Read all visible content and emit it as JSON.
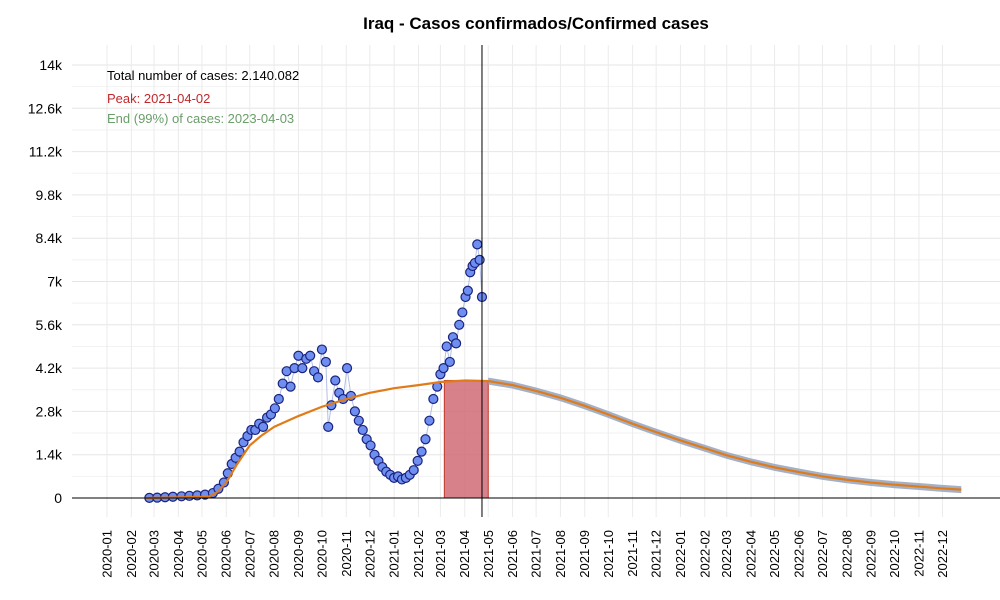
{
  "chart_data": {
    "type": "scatter",
    "title": "Iraq - Casos confirmados/Confirmed cases",
    "xlabel": "",
    "ylabel": "",
    "ylim": [
      0,
      14000
    ],
    "xlim": [
      "2020-01-01",
      "2022-12-31"
    ],
    "grid": true,
    "yticks": [
      0,
      1400,
      2800,
      4200,
      5600,
      7000,
      8400,
      9800,
      11200,
      12600,
      14000
    ],
    "ytick_labels": [
      "0",
      "1.4k",
      "2.8k",
      "4.2k",
      "5.6k",
      "7k",
      "8.4k",
      "9.8k",
      "11.2k",
      "12.6k",
      "14k"
    ],
    "xtick_labels": [
      "2020-01",
      "2020-02",
      "2020-03",
      "2020-04",
      "2020-05",
      "2020-06",
      "2020-07",
      "2020-08",
      "2020-09",
      "2020-10",
      "2020-11",
      "2020-12",
      "2021-01",
      "2021-02",
      "2021-03",
      "2021-04",
      "2021-05",
      "2021-06",
      "2021-07",
      "2021-08",
      "2021-09",
      "2021-10",
      "2021-11",
      "2021-12",
      "2022-01",
      "2022-02",
      "2022-03",
      "2022-04",
      "2022-05",
      "2022-06",
      "2022-07",
      "2022-08",
      "2022-09",
      "2022-10",
      "2022-11",
      "2022-12"
    ],
    "annotations": {
      "total": "Total number of cases: 2.140.082",
      "peak": "Peak: 2021-04-02",
      "end": "End (99%) of cases: 2023-04-03"
    },
    "colors": {
      "points_fill": "#6f8ff0",
      "points_stroke": "#1a237e",
      "fit_line": "#e07b1a",
      "forecast_band": "#9aa7c0",
      "peak_area": "#d06b77",
      "peak_area_stroke": "#c0392b",
      "peak_text": "#c0282b",
      "end_text": "#6a9e6a"
    },
    "current_date": "2021-04-23",
    "peak_area": {
      "from": "2021-03-06",
      "to": "2021-05-01",
      "value": 3800
    },
    "series": [
      {
        "type": "points",
        "x": [
          "2020-02-24",
          "2020-03-05",
          "2020-03-15",
          "2020-03-25",
          "2020-04-05",
          "2020-04-15",
          "2020-04-25",
          "2020-05-05",
          "2020-05-15",
          "2020-05-22",
          "2020-05-29",
          "2020-06-03",
          "2020-06-08",
          "2020-06-13",
          "2020-06-18",
          "2020-06-23",
          "2020-06-28",
          "2020-07-03",
          "2020-07-08",
          "2020-07-13",
          "2020-07-18",
          "2020-07-23",
          "2020-07-28",
          "2020-08-02",
          "2020-08-07",
          "2020-08-12",
          "2020-08-17",
          "2020-08-22",
          "2020-08-27",
          "2020-09-01",
          "2020-09-06",
          "2020-09-11",
          "2020-09-16",
          "2020-09-21",
          "2020-09-26",
          "2020-10-01",
          "2020-10-06",
          "2020-10-09",
          "2020-10-13",
          "2020-10-18",
          "2020-10-23",
          "2020-10-28",
          "2020-11-02",
          "2020-11-07",
          "2020-11-12",
          "2020-11-17",
          "2020-11-22",
          "2020-11-27",
          "2020-12-02",
          "2020-12-07",
          "2020-12-12",
          "2020-12-17",
          "2020-12-22",
          "2020-12-27",
          "2021-01-01",
          "2021-01-06",
          "2021-01-11",
          "2021-01-16",
          "2021-01-21",
          "2021-01-26",
          "2021-01-31",
          "2021-02-05",
          "2021-02-10",
          "2021-02-15",
          "2021-02-20",
          "2021-02-25",
          "2021-03-01",
          "2021-03-05",
          "2021-03-09",
          "2021-03-13",
          "2021-03-17",
          "2021-03-21",
          "2021-03-25",
          "2021-03-29",
          "2021-04-02",
          "2021-04-05",
          "2021-04-08",
          "2021-04-11",
          "2021-04-14",
          "2021-04-17",
          "2021-04-20",
          "2021-04-23"
        ],
        "y": [
          5,
          12,
          25,
          40,
          55,
          70,
          85,
          110,
          160,
          300,
          500,
          800,
          1100,
          1300,
          1500,
          1800,
          2000,
          2200,
          2200,
          2400,
          2300,
          2600,
          2700,
          2900,
          3200,
          3700,
          4100,
          3600,
          4200,
          4600,
          4200,
          4500,
          4600,
          4100,
          3900,
          4800,
          4400,
          2300,
          3000,
          3800,
          3400,
          3200,
          4200,
          3300,
          2800,
          2500,
          2200,
          1900,
          1700,
          1400,
          1200,
          1000,
          850,
          750,
          650,
          700,
          600,
          650,
          750,
          900,
          1200,
          1500,
          1900,
          2500,
          3200,
          3600,
          4000,
          4200,
          4900,
          4400,
          5200,
          5000,
          5600,
          6000,
          6500,
          6700,
          7300,
          7500,
          7600,
          8200,
          7700,
          6500
        ]
      },
      {
        "type": "fit",
        "x": [
          "2020-02-20",
          "2020-05-10",
          "2020-05-20",
          "2020-06-01",
          "2020-06-15",
          "2020-07-01",
          "2020-07-15",
          "2020-08-01",
          "2020-09-01",
          "2020-10-01",
          "2020-11-01",
          "2020-12-01",
          "2021-01-01",
          "2021-02-01",
          "2021-03-01",
          "2021-04-02",
          "2021-05-01",
          "2021-06-01",
          "2021-07-01",
          "2021-08-01",
          "2021-09-01",
          "2021-10-01",
          "2021-11-01",
          "2021-12-01",
          "2022-01-01",
          "2022-02-01",
          "2022-03-01",
          "2022-04-01",
          "2022-05-01",
          "2022-06-01",
          "2022-07-01",
          "2022-08-01",
          "2022-09-01",
          "2022-10-01",
          "2022-11-01",
          "2022-12-01",
          "2022-12-25"
        ],
        "y": [
          0,
          40,
          180,
          500,
          1100,
          1700,
          2000,
          2300,
          2650,
          2950,
          3200,
          3400,
          3550,
          3650,
          3750,
          3800,
          3780,
          3650,
          3460,
          3240,
          2980,
          2700,
          2400,
          2130,
          1860,
          1610,
          1380,
          1170,
          990,
          840,
          700,
          590,
          500,
          430,
          370,
          310,
          270
        ]
      }
    ]
  }
}
